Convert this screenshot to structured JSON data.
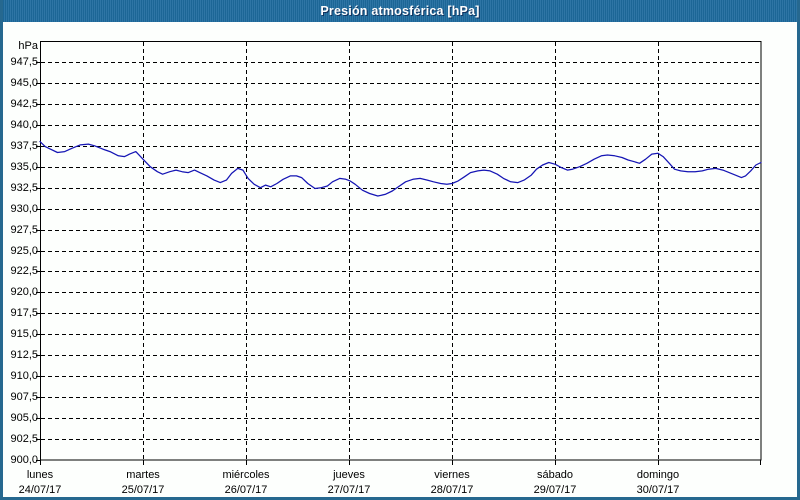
{
  "window": {
    "title": "Presión atmosférica [hPa]"
  },
  "colors": {
    "titlebar": "#1e6b9e",
    "frame": "#26688f",
    "grid": "#000000",
    "line": "#1515b4"
  },
  "chart_data": {
    "type": "line",
    "title": "Presión atmosférica [hPa]",
    "ylabel": "hPa",
    "y_min": 900,
    "y_max": 950,
    "y_step": 2.5,
    "grid": "dashed",
    "y_ticks": [
      "947,5",
      "945,0",
      "942,5",
      "940,0",
      "937,5",
      "935,0",
      "932,5",
      "930,0",
      "927,5",
      "925,0",
      "922,5",
      "920,0",
      "917,5",
      "915,0",
      "912,5",
      "910,0",
      "907,5",
      "905,0",
      "902,5",
      "900,0"
    ],
    "x_days": [
      {
        "name": "lunes",
        "date": "24/07/17"
      },
      {
        "name": "martes",
        "date": "25/07/17"
      },
      {
        "name": "miércoles",
        "date": "26/07/17"
      },
      {
        "name": "jueves",
        "date": "27/07/17"
      },
      {
        "name": "viernes",
        "date": "28/07/17"
      },
      {
        "name": "sábado",
        "date": "29/07/17"
      },
      {
        "name": "domingo",
        "date": "30/07/17"
      }
    ],
    "series": [
      {
        "name": "Presión atmosférica",
        "points": [
          [
            0.0,
            938.0
          ],
          [
            0.05,
            937.4
          ],
          [
            0.1,
            937.1
          ],
          [
            0.17,
            936.7
          ],
          [
            0.24,
            936.8
          ],
          [
            0.31,
            937.2
          ],
          [
            0.39,
            937.6
          ],
          [
            0.47,
            937.7
          ],
          [
            0.53,
            937.5
          ],
          [
            0.61,
            937.1
          ],
          [
            0.68,
            936.8
          ],
          [
            0.76,
            936.3
          ],
          [
            0.82,
            936.2
          ],
          [
            0.87,
            936.5
          ],
          [
            0.93,
            936.8
          ],
          [
            1.0,
            935.9
          ],
          [
            1.07,
            935.0
          ],
          [
            1.14,
            934.4
          ],
          [
            1.19,
            934.1
          ],
          [
            1.26,
            934.4
          ],
          [
            1.32,
            934.6
          ],
          [
            1.38,
            934.4
          ],
          [
            1.44,
            934.3
          ],
          [
            1.5,
            934.6
          ],
          [
            1.55,
            934.3
          ],
          [
            1.62,
            933.9
          ],
          [
            1.69,
            933.4
          ],
          [
            1.75,
            933.1
          ],
          [
            1.81,
            933.4
          ],
          [
            1.86,
            934.2
          ],
          [
            1.92,
            934.8
          ],
          [
            1.97,
            934.6
          ],
          [
            2.02,
            933.6
          ],
          [
            2.08,
            932.9
          ],
          [
            2.14,
            932.5
          ],
          [
            2.19,
            932.8
          ],
          [
            2.24,
            932.6
          ],
          [
            2.3,
            933.0
          ],
          [
            2.36,
            933.5
          ],
          [
            2.43,
            933.9
          ],
          [
            2.49,
            933.9
          ],
          [
            2.54,
            933.7
          ],
          [
            2.6,
            933.0
          ],
          [
            2.67,
            932.4
          ],
          [
            2.73,
            932.5
          ],
          [
            2.79,
            932.7
          ],
          [
            2.84,
            933.2
          ],
          [
            2.91,
            933.6
          ],
          [
            2.97,
            933.5
          ],
          [
            3.01,
            933.3
          ],
          [
            3.06,
            932.9
          ],
          [
            3.13,
            932.2
          ],
          [
            3.2,
            931.8
          ],
          [
            3.28,
            931.5
          ],
          [
            3.35,
            931.7
          ],
          [
            3.42,
            932.1
          ],
          [
            3.49,
            932.7
          ],
          [
            3.55,
            933.2
          ],
          [
            3.62,
            933.5
          ],
          [
            3.69,
            933.6
          ],
          [
            3.76,
            933.4
          ],
          [
            3.82,
            933.2
          ],
          [
            3.89,
            933.0
          ],
          [
            3.95,
            932.9
          ],
          [
            4.0,
            933.0
          ],
          [
            4.06,
            933.3
          ],
          [
            4.12,
            933.8
          ],
          [
            4.18,
            934.3
          ],
          [
            4.25,
            934.5
          ],
          [
            4.31,
            934.6
          ],
          [
            4.37,
            934.5
          ],
          [
            4.44,
            934.1
          ],
          [
            4.5,
            933.6
          ],
          [
            4.57,
            933.2
          ],
          [
            4.64,
            933.1
          ],
          [
            4.7,
            933.4
          ],
          [
            4.77,
            934.0
          ],
          [
            4.82,
            934.7
          ],
          [
            4.88,
            935.2
          ],
          [
            4.94,
            935.5
          ],
          [
            5.0,
            935.3
          ],
          [
            5.06,
            934.9
          ],
          [
            5.12,
            934.6
          ],
          [
            5.17,
            934.7
          ],
          [
            5.24,
            935.0
          ],
          [
            5.31,
            935.4
          ],
          [
            5.38,
            935.9
          ],
          [
            5.45,
            936.3
          ],
          [
            5.51,
            936.4
          ],
          [
            5.58,
            936.3
          ],
          [
            5.65,
            936.1
          ],
          [
            5.71,
            935.8
          ],
          [
            5.77,
            935.6
          ],
          [
            5.82,
            935.4
          ],
          [
            5.88,
            935.9
          ],
          [
            5.94,
            936.5
          ],
          [
            6.0,
            936.6
          ],
          [
            6.05,
            936.2
          ],
          [
            6.11,
            935.4
          ],
          [
            6.16,
            934.7
          ],
          [
            6.22,
            934.5
          ],
          [
            6.29,
            934.4
          ],
          [
            6.36,
            934.4
          ],
          [
            6.43,
            934.5
          ],
          [
            6.49,
            934.7
          ],
          [
            6.56,
            934.8
          ],
          [
            6.63,
            934.6
          ],
          [
            6.69,
            934.3
          ],
          [
            6.75,
            934.0
          ],
          [
            6.81,
            933.7
          ],
          [
            6.85,
            933.9
          ],
          [
            6.9,
            934.5
          ],
          [
            6.95,
            935.2
          ],
          [
            7.0,
            935.5
          ]
        ]
      }
    ]
  }
}
